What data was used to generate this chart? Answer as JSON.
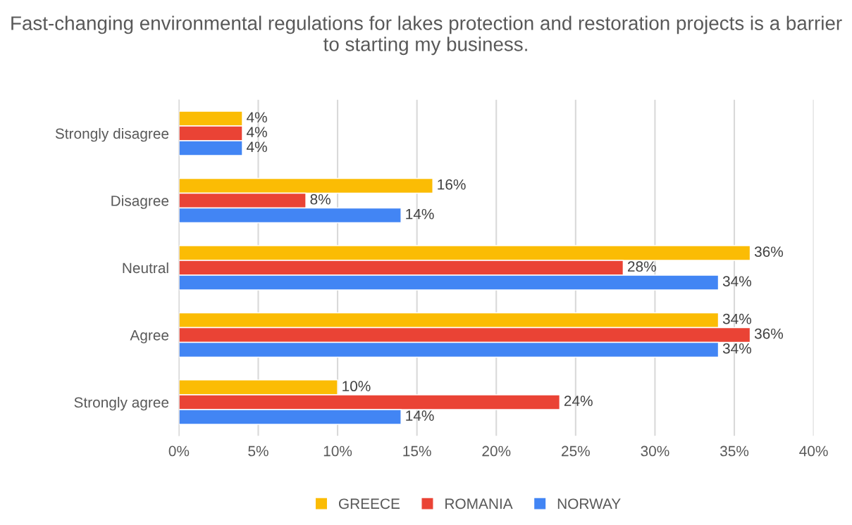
{
  "chart_data": {
    "type": "bar",
    "orientation": "horizontal",
    "title": "Fast-changing environmental regulations for lakes protection and restoration projects is a barrier to starting my business.",
    "categories": [
      "Strongly disagree",
      "Disagree",
      "Neutral",
      "Agree",
      "Strongly agree"
    ],
    "series": [
      {
        "name": "GREECE",
        "color": "#fbbc04",
        "values": [
          4,
          16,
          36,
          34,
          10
        ],
        "value_labels": [
          "4%",
          "16%",
          "36%",
          "34%",
          "10%"
        ]
      },
      {
        "name": "ROMANIA",
        "color": "#ea4335",
        "values": [
          4,
          8,
          28,
          36,
          24
        ],
        "value_labels": [
          "4%",
          "8%",
          "28%",
          "36%",
          "24%"
        ]
      },
      {
        "name": "NORWAY",
        "color": "#4285f4",
        "values": [
          4,
          14,
          34,
          34,
          14
        ],
        "value_labels": [
          "4%",
          "14%",
          "34%",
          "34%",
          "14%"
        ]
      }
    ],
    "xlim": [
      0,
      40
    ],
    "xticks": [
      {
        "value": 0,
        "label": "0%"
      },
      {
        "value": 5,
        "label": "5%"
      },
      {
        "value": 10,
        "label": "10%"
      },
      {
        "value": 15,
        "label": "15%"
      },
      {
        "value": 20,
        "label": "20%"
      },
      {
        "value": 25,
        "label": "25%"
      },
      {
        "value": 30,
        "label": "30%"
      },
      {
        "value": 35,
        "label": "35%"
      },
      {
        "value": 40,
        "label": "40%"
      }
    ],
    "grid": "x",
    "legend": "bottom"
  }
}
